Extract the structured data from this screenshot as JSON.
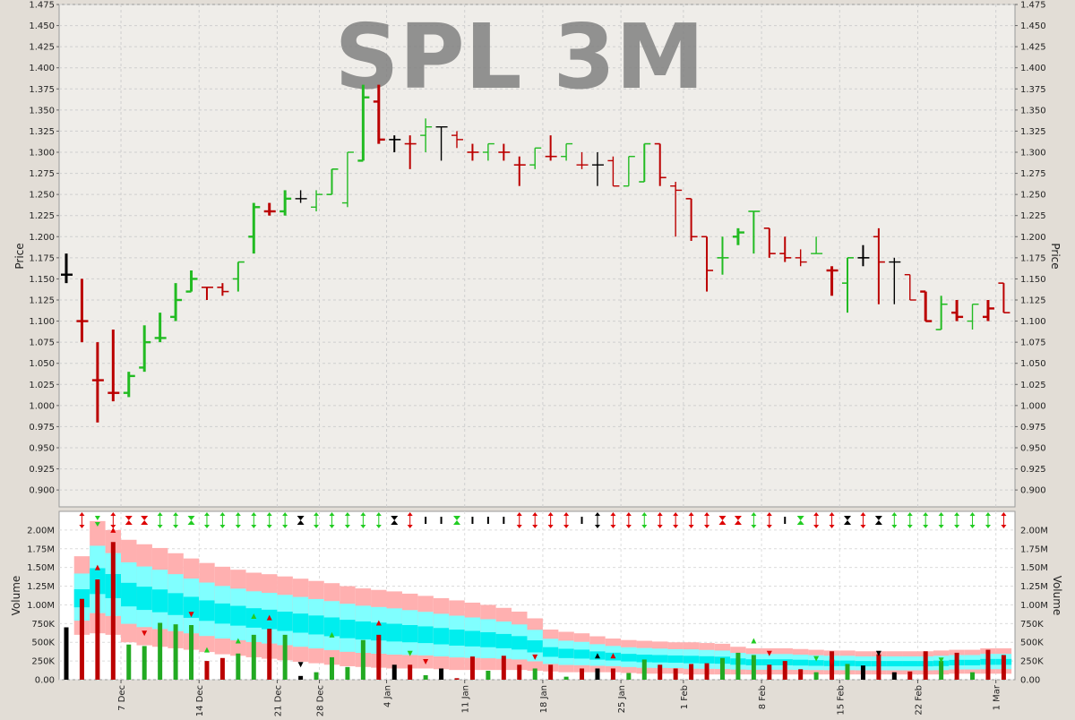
{
  "chart_data": [
    {
      "type": "ohlc",
      "title": "SPL 3M",
      "ylabel": "Price",
      "ylim": [
        0.88,
        1.475
      ],
      "yticks": [
        "0.900",
        "0.925",
        "0.950",
        "0.975",
        "1.000",
        "1.025",
        "1.050",
        "1.075",
        "1.100",
        "1.125",
        "1.150",
        "1.175",
        "1.200",
        "1.225",
        "1.250",
        "1.275",
        "1.300",
        "1.325",
        "1.350",
        "1.375",
        "1.400",
        "1.425",
        "1.450",
        "1.475"
      ],
      "grid": true,
      "colors": {
        "up": "#22bb22",
        "down": "#bb0000",
        "flat": "#000000"
      },
      "bars": [
        {
          "o": 1.155,
          "h": 1.18,
          "l": 1.145,
          "c": 1.155,
          "s": "flat"
        },
        {
          "o": 1.1,
          "h": 1.15,
          "l": 1.075,
          "c": 1.1,
          "s": "down"
        },
        {
          "o": 1.03,
          "h": 1.075,
          "l": 0.98,
          "c": 1.03,
          "s": "down"
        },
        {
          "o": 1.015,
          "h": 1.09,
          "l": 1.005,
          "c": 1.015,
          "s": "down"
        },
        {
          "o": 1.015,
          "h": 1.04,
          "l": 1.01,
          "c": 1.035,
          "s": "up"
        },
        {
          "o": 1.045,
          "h": 1.095,
          "l": 1.04,
          "c": 1.075,
          "s": "up"
        },
        {
          "o": 1.08,
          "h": 1.11,
          "l": 1.075,
          "c": 1.08,
          "s": "up"
        },
        {
          "o": 1.105,
          "h": 1.145,
          "l": 1.1,
          "c": 1.125,
          "s": "up"
        },
        {
          "o": 1.135,
          "h": 1.16,
          "l": 1.135,
          "c": 1.15,
          "s": "up"
        },
        {
          "o": 1.14,
          "h": 1.14,
          "l": 1.125,
          "c": 1.14,
          "s": "down"
        },
        {
          "o": 1.14,
          "h": 1.145,
          "l": 1.13,
          "c": 1.135,
          "s": "down"
        },
        {
          "o": 1.15,
          "h": 1.17,
          "l": 1.135,
          "c": 1.17,
          "s": "up"
        },
        {
          "o": 1.2,
          "h": 1.24,
          "l": 1.18,
          "c": 1.235,
          "s": "up"
        },
        {
          "o": 1.23,
          "h": 1.24,
          "l": 1.225,
          "c": 1.23,
          "s": "down"
        },
        {
          "o": 1.23,
          "h": 1.255,
          "l": 1.225,
          "c": 1.245,
          "s": "up"
        },
        {
          "o": 1.245,
          "h": 1.255,
          "l": 1.24,
          "c": 1.245,
          "s": "flat"
        },
        {
          "o": 1.235,
          "h": 1.255,
          "l": 1.23,
          "c": 1.25,
          "s": "up"
        },
        {
          "o": 1.25,
          "h": 1.28,
          "l": 1.25,
          "c": 1.28,
          "s": "up"
        },
        {
          "o": 1.24,
          "h": 1.3,
          "l": 1.235,
          "c": 1.3,
          "s": "up"
        },
        {
          "o": 1.29,
          "h": 1.38,
          "l": 1.29,
          "c": 1.365,
          "s": "up"
        },
        {
          "o": 1.36,
          "h": 1.38,
          "l": 1.31,
          "c": 1.315,
          "s": "down"
        },
        {
          "o": 1.315,
          "h": 1.32,
          "l": 1.3,
          "c": 1.315,
          "s": "flat"
        },
        {
          "o": 1.31,
          "h": 1.32,
          "l": 1.28,
          "c": 1.31,
          "s": "down"
        },
        {
          "o": 1.32,
          "h": 1.34,
          "l": 1.3,
          "c": 1.33,
          "s": "up"
        },
        {
          "o": 1.33,
          "h": 1.33,
          "l": 1.29,
          "c": 1.33,
          "s": "flat"
        },
        {
          "o": 1.32,
          "h": 1.325,
          "l": 1.305,
          "c": 1.315,
          "s": "down"
        },
        {
          "o": 1.3,
          "h": 1.31,
          "l": 1.29,
          "c": 1.3,
          "s": "down"
        },
        {
          "o": 1.3,
          "h": 1.31,
          "l": 1.29,
          "c": 1.31,
          "s": "up"
        },
        {
          "o": 1.3,
          "h": 1.31,
          "l": 1.29,
          "c": 1.3,
          "s": "down"
        },
        {
          "o": 1.285,
          "h": 1.295,
          "l": 1.26,
          "c": 1.285,
          "s": "down"
        },
        {
          "o": 1.285,
          "h": 1.305,
          "l": 1.28,
          "c": 1.305,
          "s": "up"
        },
        {
          "o": 1.295,
          "h": 1.32,
          "l": 1.29,
          "c": 1.295,
          "s": "down"
        },
        {
          "o": 1.295,
          "h": 1.31,
          "l": 1.29,
          "c": 1.31,
          "s": "up"
        },
        {
          "o": 1.285,
          "h": 1.3,
          "l": 1.28,
          "c": 1.285,
          "s": "down"
        },
        {
          "o": 1.285,
          "h": 1.3,
          "l": 1.26,
          "c": 1.285,
          "s": "flat"
        },
        {
          "o": 1.29,
          "h": 1.295,
          "l": 1.26,
          "c": 1.26,
          "s": "down"
        },
        {
          "o": 1.26,
          "h": 1.295,
          "l": 1.26,
          "c": 1.295,
          "s": "up"
        },
        {
          "o": 1.265,
          "h": 1.31,
          "l": 1.265,
          "c": 1.31,
          "s": "up"
        },
        {
          "o": 1.31,
          "h": 1.31,
          "l": 1.26,
          "c": 1.27,
          "s": "down"
        },
        {
          "o": 1.26,
          "h": 1.265,
          "l": 1.2,
          "c": 1.255,
          "s": "down"
        },
        {
          "o": 1.245,
          "h": 1.245,
          "l": 1.195,
          "c": 1.2,
          "s": "down"
        },
        {
          "o": 1.2,
          "h": 1.2,
          "l": 1.135,
          "c": 1.16,
          "s": "down"
        },
        {
          "o": 1.175,
          "h": 1.2,
          "l": 1.155,
          "c": 1.175,
          "s": "up"
        },
        {
          "o": 1.2,
          "h": 1.21,
          "l": 1.19,
          "c": 1.205,
          "s": "up"
        },
        {
          "o": 1.23,
          "h": 1.23,
          "l": 1.18,
          "c": 1.23,
          "s": "up"
        },
        {
          "o": 1.21,
          "h": 1.21,
          "l": 1.175,
          "c": 1.18,
          "s": "down"
        },
        {
          "o": 1.18,
          "h": 1.2,
          "l": 1.17,
          "c": 1.175,
          "s": "down"
        },
        {
          "o": 1.175,
          "h": 1.185,
          "l": 1.165,
          "c": 1.17,
          "s": "down"
        },
        {
          "o": 1.18,
          "h": 1.2,
          "l": 1.18,
          "c": 1.18,
          "s": "up"
        },
        {
          "o": 1.16,
          "h": 1.165,
          "l": 1.13,
          "c": 1.16,
          "s": "down"
        },
        {
          "o": 1.145,
          "h": 1.175,
          "l": 1.11,
          "c": 1.175,
          "s": "up"
        },
        {
          "o": 1.175,
          "h": 1.19,
          "l": 1.165,
          "c": 1.175,
          "s": "flat"
        },
        {
          "o": 1.2,
          "h": 1.21,
          "l": 1.12,
          "c": 1.17,
          "s": "down"
        },
        {
          "o": 1.17,
          "h": 1.175,
          "l": 1.12,
          "c": 1.17,
          "s": "flat"
        },
        {
          "o": 1.155,
          "h": 1.155,
          "l": 1.125,
          "c": 1.125,
          "s": "down"
        },
        {
          "o": 1.135,
          "h": 1.135,
          "l": 1.1,
          "c": 1.1,
          "s": "down"
        },
        {
          "o": 1.09,
          "h": 1.13,
          "l": 1.09,
          "c": 1.12,
          "s": "up"
        },
        {
          "o": 1.11,
          "h": 1.125,
          "l": 1.1,
          "c": 1.105,
          "s": "down"
        },
        {
          "o": 1.1,
          "h": 1.12,
          "l": 1.09,
          "c": 1.12,
          "s": "up"
        },
        {
          "o": 1.105,
          "h": 1.125,
          "l": 1.1,
          "c": 1.115,
          "s": "down"
        },
        {
          "o": 1.145,
          "h": 1.145,
          "l": 1.11,
          "c": 1.11,
          "s": "down"
        }
      ]
    },
    {
      "type": "bar",
      "ylabel": "Volume",
      "ylim": [
        0,
        2.25
      ],
      "yticks": [
        "0.00",
        "250K",
        "500K",
        "750K",
        "1.00M",
        "1.25M",
        "1.50M",
        "1.75M",
        "2.00M"
      ],
      "x_ticks": [
        {
          "label": "7 Dec",
          "i": 3.5
        },
        {
          "label": "14 Dec",
          "i": 8.5
        },
        {
          "label": "21 Dec",
          "i": 13.5
        },
        {
          "label": "28 Dec",
          "i": 16.2
        },
        {
          "label": "4 Jan",
          "i": 20.5
        },
        {
          "label": "11 Jan",
          "i": 25.5
        },
        {
          "label": "18 Jan",
          "i": 30.5
        },
        {
          "label": "25 Jan",
          "i": 35.5
        },
        {
          "label": "1 Feb",
          "i": 39.5
        },
        {
          "label": "8 Feb",
          "i": 44.5
        },
        {
          "label": "15 Feb",
          "i": 49.5
        },
        {
          "label": "22 Feb",
          "i": 54.5
        },
        {
          "label": "1 Mar",
          "i": 59.5
        }
      ],
      "volumes_m": [
        0.7,
        1.08,
        1.34,
        1.84,
        0.47,
        0.45,
        0.76,
        0.74,
        0.73,
        0.25,
        0.29,
        0.35,
        0.6,
        0.68,
        0.6,
        0.05,
        0.1,
        0.3,
        0.17,
        0.53,
        0.6,
        0.2,
        0.2,
        0.06,
        0.15,
        0.02,
        0.31,
        0.12,
        0.32,
        0.2,
        0.15,
        0.2,
        0.04,
        0.15,
        0.15,
        0.15,
        0.09,
        0.27,
        0.2,
        0.15,
        0.21,
        0.22,
        0.29,
        0.36,
        0.33,
        0.2,
        0.25,
        0.14,
        0.1,
        0.38,
        0.21,
        0.19,
        0.34,
        0.1,
        0.11,
        0.38,
        0.25,
        0.36,
        0.1,
        0.4,
        0.33
      ],
      "volume_ma_upper_m": [
        1.3,
        1.65,
        2.12,
        2.0,
        1.87,
        1.81,
        1.76,
        1.69,
        1.62,
        1.56,
        1.51,
        1.47,
        1.43,
        1.41,
        1.38,
        1.35,
        1.32,
        1.29,
        1.25,
        1.22,
        1.2,
        1.18,
        1.15,
        1.12,
        1.09,
        1.06,
        1.03,
        1.0,
        0.96,
        0.91,
        0.82,
        0.67,
        0.64,
        0.62,
        0.58,
        0.55,
        0.53,
        0.52,
        0.51,
        0.5,
        0.5,
        0.49,
        0.48,
        0.44,
        0.42,
        0.42,
        0.42,
        0.41,
        0.4,
        0.39,
        0.39,
        0.38,
        0.38,
        0.38,
        0.38,
        0.38,
        0.39,
        0.4,
        0.4,
        0.42,
        0.42
      ],
      "volume_ma_lower_m": [
        0.58,
        0.6,
        0.62,
        0.6,
        0.5,
        0.46,
        0.44,
        0.42,
        0.4,
        0.37,
        0.34,
        0.32,
        0.3,
        0.28,
        0.26,
        0.24,
        0.22,
        0.2,
        0.18,
        0.17,
        0.16,
        0.15,
        0.15,
        0.15,
        0.14,
        0.13,
        0.13,
        0.13,
        0.13,
        0.13,
        0.12,
        0.11,
        0.1,
        0.1,
        0.1,
        0.1,
        0.09,
        0.08,
        0.08,
        0.08,
        0.07,
        0.07,
        0.07,
        0.07,
        0.07,
        0.07,
        0.07,
        0.07,
        0.07,
        0.07,
        0.07,
        0.07,
        0.07,
        0.07,
        0.07,
        0.07,
        0.07,
        0.08,
        0.08,
        0.08,
        0.08
      ],
      "signal_markers": [
        "",
        "ud-red",
        "dd-green",
        "ud-red",
        "x-red",
        "x-red",
        "ud-green",
        "ud-green",
        "x-green",
        "ud-green",
        "ud-green",
        "ud-green",
        "ud-green",
        "ud-green",
        "ud-green",
        "hg-black",
        "ud-green",
        "ud-green",
        "ud-green",
        "ud-green",
        "ud-green",
        "hg-black",
        "ud-red",
        "bar-black",
        "bar-black",
        "x-green",
        "bar-black",
        "bar-black",
        "bar-black",
        "ud-red",
        "ud-red",
        "ud-red",
        "ud-red",
        "bar-black",
        "ud-black",
        "ud-red",
        "ud-red",
        "ud-green",
        "ud-red",
        "ud-red",
        "ud-red",
        "ud-red",
        "hg-red",
        "hg-red",
        "ud-green",
        "ud-red",
        "bar-black",
        "x-green",
        "ud-red",
        "ud-red",
        "hg-black",
        "ud-red",
        "hg-black",
        "ud-green",
        "ud-green",
        "ud-green",
        "ud-green",
        "ud-green",
        "ud-green",
        "ud-green",
        "ud-red"
      ],
      "volume_markers": [
        {
          "i": 2,
          "v": 1.5,
          "d": "up",
          "c": "red"
        },
        {
          "i": 3,
          "v": 2.0,
          "d": "up",
          "c": "red"
        },
        {
          "i": 5,
          "v": 0.62,
          "d": "down",
          "c": "red"
        },
        {
          "i": 8,
          "v": 0.87,
          "d": "down",
          "c": "red"
        },
        {
          "i": 9,
          "v": 0.4,
          "d": "up",
          "c": "green"
        },
        {
          "i": 11,
          "v": 0.52,
          "d": "up",
          "c": "green"
        },
        {
          "i": 12,
          "v": 0.85,
          "d": "up",
          "c": "green"
        },
        {
          "i": 13,
          "v": 0.83,
          "d": "up",
          "c": "red"
        },
        {
          "i": 15,
          "v": 0.2,
          "d": "down",
          "c": "black"
        },
        {
          "i": 17,
          "v": 0.6,
          "d": "up",
          "c": "green"
        },
        {
          "i": 20,
          "v": 0.76,
          "d": "up",
          "c": "red"
        },
        {
          "i": 22,
          "v": 0.35,
          "d": "down",
          "c": "green"
        },
        {
          "i": 23,
          "v": 0.24,
          "d": "down",
          "c": "red"
        },
        {
          "i": 30,
          "v": 0.3,
          "d": "down",
          "c": "red"
        },
        {
          "i": 34,
          "v": 0.32,
          "d": "up",
          "c": "black"
        },
        {
          "i": 35,
          "v": 0.32,
          "d": "up",
          "c": "red"
        },
        {
          "i": 44,
          "v": 0.52,
          "d": "up",
          "c": "green"
        },
        {
          "i": 45,
          "v": 0.35,
          "d": "down",
          "c": "red"
        },
        {
          "i": 48,
          "v": 0.28,
          "d": "down",
          "c": "green"
        },
        {
          "i": 49,
          "v": 0.23,
          "d": "down",
          "c": "red"
        },
        {
          "i": 52,
          "v": 0.35,
          "d": "down",
          "c": "black"
        },
        {
          "i": 56,
          "v": 0.26,
          "d": "down",
          "c": "green"
        }
      ],
      "band_colors": {
        "outer": "#ffb0b0",
        "mid": "#80ffff",
        "inner": "#00eeee"
      },
      "grid": true
    }
  ]
}
